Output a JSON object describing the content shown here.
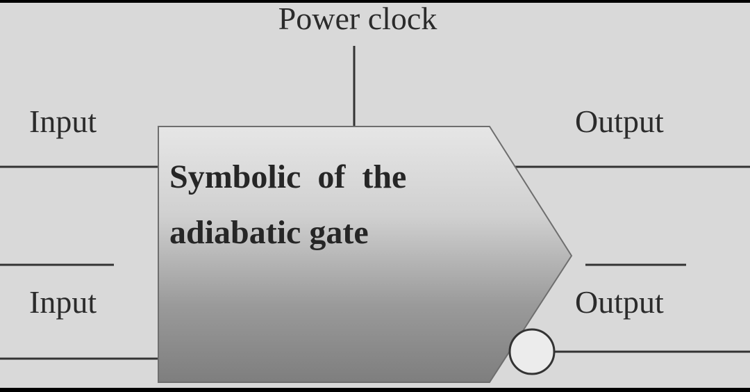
{
  "diagram": {
    "power_clock_label": "Power clock",
    "input_label": "Input",
    "input_bar_label": "Input",
    "output_label": "Output",
    "output_bar_label": "Output",
    "gate_title_line1": "Symbolic  of  the",
    "gate_title_line2": "adiabatic gate"
  }
}
